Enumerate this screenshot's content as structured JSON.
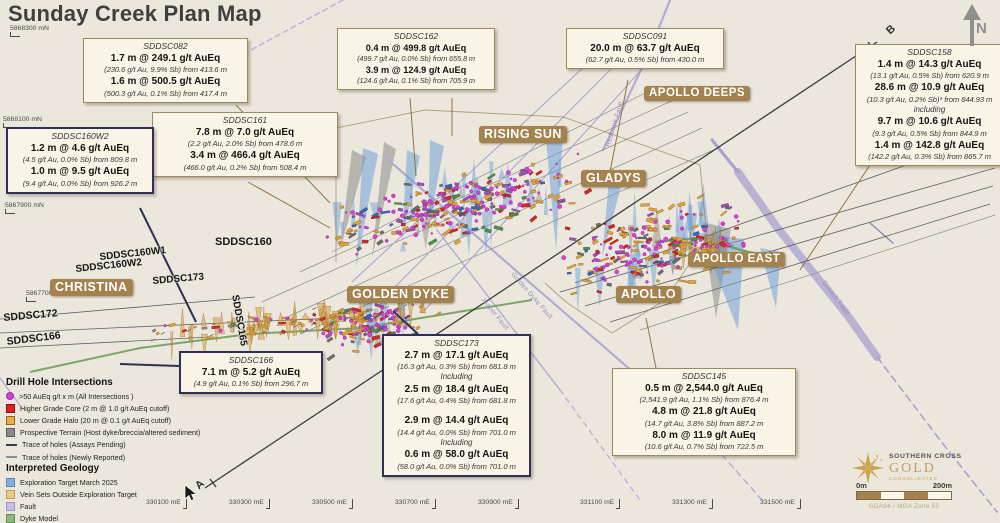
{
  "title": "Sunday Creek Plan Map",
  "compass": {
    "north": "N"
  },
  "section_line": {
    "start": "A",
    "end": "B"
  },
  "axis": {
    "northings": [
      "5868300 mN",
      "5868100 mN",
      "5867900 mN",
      "5867700 mN"
    ],
    "eastings": [
      "330100 mE",
      "330300 mE",
      "330500 mE",
      "330700 mE",
      "330900 mE",
      "331100 mE",
      "331300 mE",
      "331500 mE"
    ]
  },
  "prospect_labels": [
    "CHRISTINA",
    "GOLDEN DYKE",
    "RISING SUN",
    "GLADYS",
    "APOLLO",
    "APOLLO EAST",
    "APOLLO DEEPS"
  ],
  "fault_labels": [
    "Redbank Fault",
    "Jasper Fault",
    "Golden Dyke Fault",
    "Goliath Fault"
  ],
  "hole_labels": [
    "SDDSC160",
    "SDDSC160W1",
    "SDDSC160W2",
    "SDDSC173",
    "SDDSC165",
    "SDDSC172",
    "SDDSC166"
  ],
  "callouts": [
    {
      "id": "SDDSC082",
      "variant": "tan",
      "lines": [
        {
          "s": "b",
          "t": "1.7 m @ 249.1 g/t AuEq"
        },
        {
          "s": "d",
          "t": "(230.6 g/t Au, 9.9% Sb) from 413.6 m"
        },
        {
          "s": "b",
          "t": "1.6 m @ 500.5 g/t AuEq"
        },
        {
          "s": "d",
          "t": "(500.3 g/t Au, 0.1% Sb) from 417.4 m"
        }
      ]
    },
    {
      "id": "SDDSC161",
      "variant": "tan",
      "lines": [
        {
          "s": "b",
          "t": "7.8 m @ 7.0 g/t AuEq"
        },
        {
          "s": "d",
          "t": "(2.2 g/t Au, 2.0% Sb) from 478.6 m"
        },
        {
          "s": "b",
          "t": "3.4 m @ 466.4 g/t AuEq"
        },
        {
          "s": "d",
          "t": "(466.0 g/t Au, 0.2% Sb) from 508.4 m"
        }
      ]
    },
    {
      "id": "SDDSC160W2",
      "variant": "navy",
      "lines": [
        {
          "s": "b",
          "t": "1.2 m @ 4.6 g/t AuEq"
        },
        {
          "s": "d",
          "t": "(4.5 g/t Au, 0.0% Sb) from 809.8 m"
        },
        {
          "s": "b",
          "t": "1.0 m @ 9.5 g/t AuEq"
        },
        {
          "s": "d",
          "t": "(9.4 g/t Au, 0.0% Sb) from 926.2 m"
        }
      ]
    },
    {
      "id": "SDDSC162",
      "variant": "tan",
      "lines": [
        {
          "s": "b",
          "t": "0.4 m @ 499.8 g/t AuEq"
        },
        {
          "s": "d",
          "t": "(499.7 g/t Au, 0.0% Sb) from 655.8 m"
        },
        {
          "s": "b",
          "t": "3.9 m @ 124.9 g/t AuEq"
        },
        {
          "s": "d",
          "t": "(124.6 g/t Au, 0.1% Sb) from 705.9 m"
        }
      ]
    },
    {
      "id": "SDDSC091",
      "variant": "tan",
      "lines": [
        {
          "s": "b",
          "t": "20.0 m @ 63.7 g/t AuEq"
        },
        {
          "s": "d",
          "t": "(62.7 g/t Au, 0.5% Sb) from 430.0 m"
        }
      ]
    },
    {
      "id": "SDDSC158",
      "variant": "tan",
      "lines": [
        {
          "s": "b",
          "t": "1.4 m @ 14.3 g/t AuEq"
        },
        {
          "s": "d",
          "t": "(13.1 g/t Au, 0.5% Sb) from 620.9 m"
        },
        {
          "s": "b",
          "t": "28.6 m @ 10.9 g/t AuEq"
        },
        {
          "s": "d",
          "t": "(10.3 g/t Au, 0.2% Sb)* from 844.93 m"
        },
        {
          "s": "i",
          "t": "including"
        },
        {
          "s": "b",
          "t": "9.7 m @ 10.6 g/t AuEq"
        },
        {
          "s": "d",
          "t": "(9.3 g/t Au, 0.5% Sb) from 844.9 m"
        },
        {
          "s": "b",
          "t": "1.4 m @ 142.8 g/t AuEq"
        },
        {
          "s": "d",
          "t": "(142.2 g/t Au, 0.3% Sb) from 865.7 m"
        }
      ]
    },
    {
      "id": "SDDSC173",
      "variant": "navy",
      "lines": [
        {
          "s": "b",
          "t": "2.7 m @ 17.1 g/t AuEq"
        },
        {
          "s": "d",
          "t": "(16.3 g/t Au, 0.3% Sb) from 681.8 m"
        },
        {
          "s": "i",
          "t": "Including"
        },
        {
          "s": "b",
          "t": "2.5 m @ 18.4 g/t AuEq"
        },
        {
          "s": "d",
          "t": "(17.6 g/t Au, 0.4% Sb) from 681.8 m"
        },
        {
          "s": "g",
          "t": ""
        },
        {
          "s": "b",
          "t": "2.9 m @ 14.4 g/t AuEq"
        },
        {
          "s": "d",
          "t": "(14.4 g/t Au, 0.0% Sb) from 701.0 m"
        },
        {
          "s": "i",
          "t": "Including"
        },
        {
          "s": "b",
          "t": "0.6 m @ 58.0 g/t AuEq"
        },
        {
          "s": "d",
          "t": "(58.0 g/t Au, 0.0% Sb) from 701.0 m"
        }
      ]
    },
    {
      "id": "SDDSC166",
      "variant": "navy",
      "lines": [
        {
          "s": "b",
          "t": "7.1 m @ 5.2 g/t AuEq"
        },
        {
          "s": "d",
          "t": "(4.9 g/t Au, 0.1% Sb) from 296.7 m"
        }
      ]
    },
    {
      "id": "SDDSC145",
      "variant": "tan",
      "lines": [
        {
          "s": "b",
          "t": "0.5 m @ 2,544.0 g/t AuEq"
        },
        {
          "s": "d",
          "t": "(2,541.9 g/t Au, 1.1% Sb) from 876.4 m"
        },
        {
          "s": "b",
          "t": "4.8 m @ 21.8 g/t AuEq"
        },
        {
          "s": "d",
          "t": "(14.7 g/t Au, 3.8% Sb) from 887.2 m"
        },
        {
          "s": "b",
          "t": "8.0 m @ 11.9 g/t AuEq"
        },
        {
          "s": "d",
          "t": "(10.6 g/t Au, 0.7% Sb) from 722.5 m"
        }
      ]
    }
  ],
  "legend": {
    "sections": [
      {
        "heading": "Drill Hole Intersections",
        "items": [
          {
            "swatch": "dot-magenta",
            "label": ">50 AuEq g/t x m (All Intersections )"
          },
          {
            "swatch": "square-red",
            "label": "Higher Grade Core (2 m @ 1.0 g/t AuEq cutoff)"
          },
          {
            "swatch": "square-orange",
            "label": "Lower Grade Halo (20 m @ 0.1 g/t AuEq cutoff)"
          },
          {
            "swatch": "square-gray",
            "label": "Prospective Terrain (Host dyke/breccia/altered sediment)"
          },
          {
            "swatch": "line-dark",
            "label": "Trace of holes (Assays Pending)"
          },
          {
            "swatch": "line-gray",
            "label": "Trace of holes (Newly Reported)"
          }
        ]
      },
      {
        "heading": "Interpreted Geology",
        "items": [
          {
            "swatch": "square-blue",
            "label": "Exploration Target March 2025"
          },
          {
            "swatch": "square-lightorange",
            "label": "Vein Sets Outside Exploration Target"
          },
          {
            "swatch": "square-lavender",
            "label": "Fault"
          },
          {
            "swatch": "square-green",
            "label": "Dyke Model"
          }
        ]
      }
    ]
  },
  "scalebar": {
    "start": "0m",
    "end": "200m",
    "datum": "GDA94 / MGA Zone 55"
  },
  "logo": {
    "name_top": "SOUTHERN CROSS",
    "name_main": "GOLD",
    "name_sub": "CONSOLIDATED"
  },
  "colors": {
    "background": "#ece7dd",
    "callout_tan_border": "#9b8a5c",
    "callout_navy_border": "#2e3057",
    "prospect_chip": "#a3824d",
    "fault": "#b3aad4",
    "higher_grade_core": "#cf2b25",
    "lower_grade_halo": "#e3a23c",
    "intersection_dot": "#e23fc8",
    "exploration_target": "#85aede",
    "dyke_model": "#6f9e5a",
    "prospective_terrain": "#808080"
  }
}
